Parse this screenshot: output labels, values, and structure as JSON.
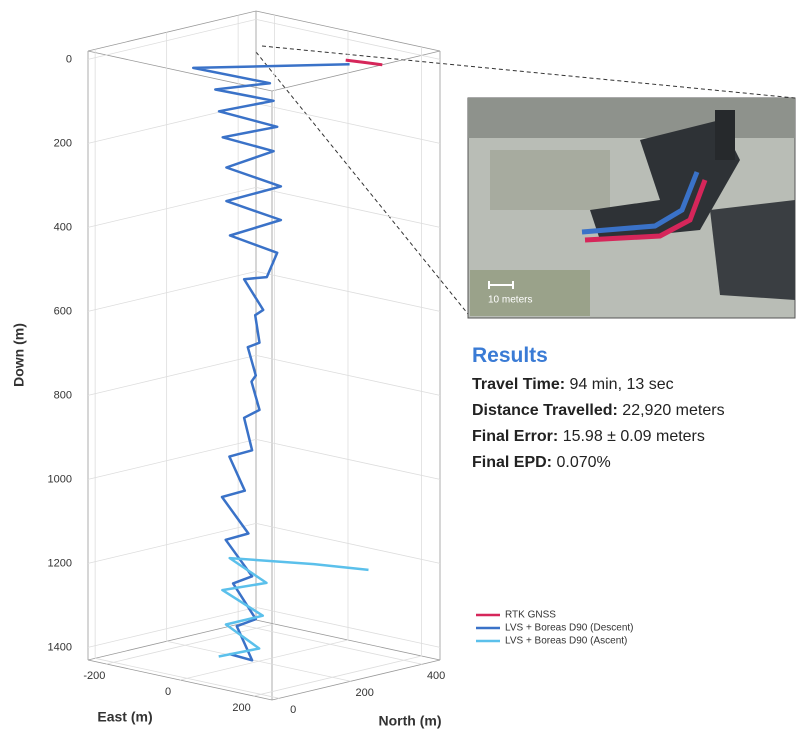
{
  "chart_data": {
    "type": "line3d",
    "axis_labels": {
      "x": "East (m)",
      "y": "North (m)",
      "z": "Down (m)"
    },
    "xlim": [
      -250,
      250
    ],
    "xticks": [
      -200,
      0,
      200
    ],
    "ylim": [
      -20,
      450
    ],
    "yticks": [
      0,
      200,
      400
    ],
    "zlim": [
      -20,
      1430
    ],
    "zticks": [
      0,
      200,
      400,
      600,
      800,
      1000,
      1200,
      1400
    ],
    "z_reversed": true,
    "grid": true,
    "legend": "lower right",
    "series": [
      {
        "name": "RTK GNSS",
        "color": "#d6265a",
        "east": [
          120,
          160,
          200
        ],
        "north": [
          320,
          330,
          340
        ],
        "down": [
          0,
          0,
          0
        ]
      },
      {
        "name": "LVS + Boreas D90 (Descent)",
        "color": "#3a72c8",
        "east": [
          150,
          -100,
          50,
          -40,
          60,
          -30,
          70,
          -20,
          60,
          -10,
          80,
          -10,
          80,
          0,
          70,
          100,
          -20,
          90,
          10,
          80,
          -10,
          70,
          0,
          80,
          -20,
          60,
          -60,
          40,
          -80,
          50,
          -70,
          60,
          -50,
          70,
          -40,
          60,
          -60
        ],
        "north": [
          300,
          120,
          180,
          120,
          180,
          120,
          180,
          120,
          180,
          120,
          180,
          120,
          180,
          120,
          180,
          120,
          180,
          120,
          180,
          120,
          180,
          120,
          180,
          120,
          180,
          120,
          180,
          120,
          180,
          120,
          180,
          120,
          180,
          120,
          180,
          120,
          180
        ],
        "down": [
          0,
          20,
          40,
          60,
          80,
          110,
          140,
          170,
          200,
          240,
          280,
          320,
          360,
          400,
          440,
          480,
          520,
          560,
          600,
          640,
          680,
          720,
          760,
          800,
          850,
          900,
          950,
          1000,
          1050,
          1100,
          1150,
          1200,
          1250,
          1300,
          1350,
          1400,
          1420
        ]
      },
      {
        "name": "LVS + Boreas D90 (Ascent)",
        "color": "#5bc0eb",
        "east": [
          -60,
          50,
          -40,
          60,
          -50,
          70,
          -30,
          150,
          250
        ],
        "north": [
          150,
          150,
          150,
          150,
          150,
          150,
          150,
          200,
          250
        ],
        "down": [
          1420,
          1380,
          1340,
          1300,
          1260,
          1220,
          1180,
          1170,
          1175
        ]
      }
    ]
  },
  "inset": {
    "scale_label": "10 meters"
  },
  "results": {
    "title": "Results",
    "items": [
      {
        "label": "Travel Time:",
        "value": "94 min, 13 sec"
      },
      {
        "label": "Distance Travelled:",
        "value": "22,920 meters"
      },
      {
        "label": "Final Error:",
        "value": "15.98 ± 0.09 meters"
      },
      {
        "label": "Final EPD:",
        "value": "0.070%"
      }
    ]
  }
}
